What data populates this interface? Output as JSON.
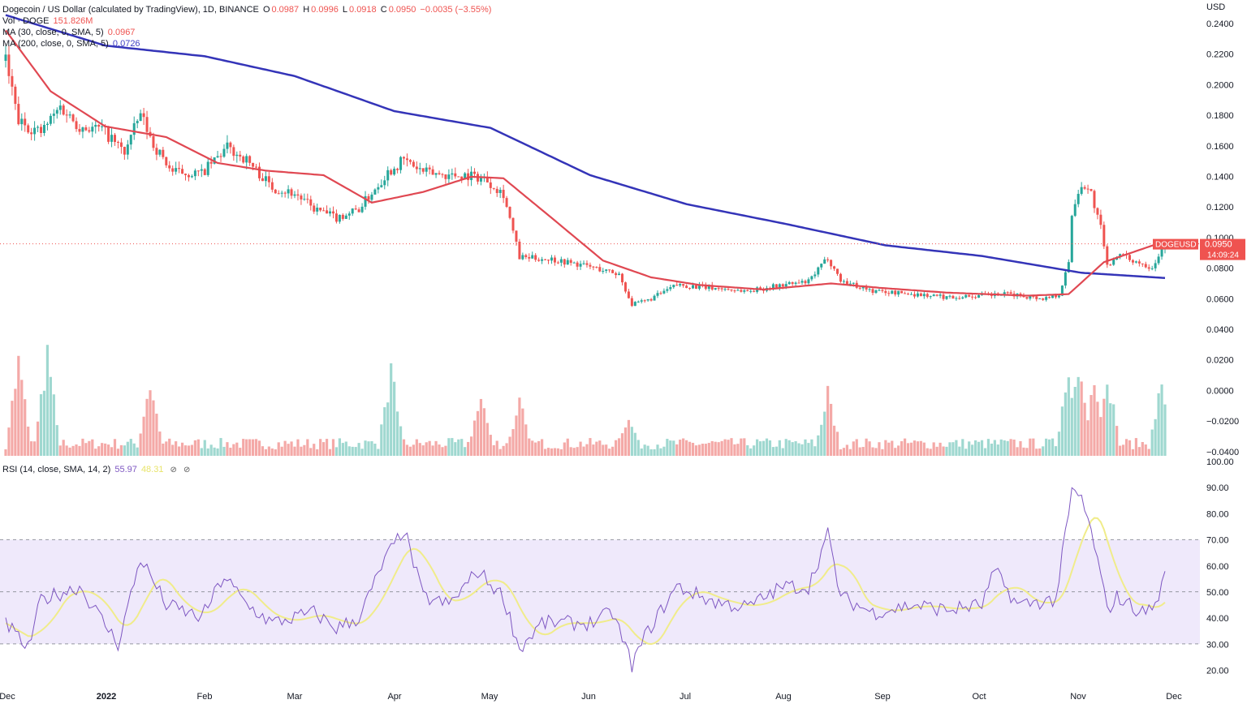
{
  "header": {
    "symbol_title": "Dogecoin / US Dollar (calculated by TradingView), 1D, BINANCE",
    "ohlc": {
      "o_label": "O",
      "o": "0.0987",
      "h_label": "H",
      "h": "0.0996",
      "l_label": "L",
      "l": "0.0918",
      "c_label": "C",
      "c": "0.0950",
      "change": "−0.0035 (−3.55%)"
    }
  },
  "studies": {
    "volume": {
      "label": "Vol · DOGE",
      "value": "151.826M"
    },
    "ma30": {
      "label": "MA (30, close, 0, SMA, 5)",
      "value": "0.0967"
    },
    "ma200": {
      "label": "MA (200, close, 0, SMA, 5)",
      "value": "0.0726"
    },
    "rsi": {
      "label": "RSI (14, close, SMA, 14, 2)",
      "value": "55.97",
      "value2": "48.31"
    }
  },
  "icons": {
    "eye_off": "eye-off-icon",
    "settings": "settings-icon"
  },
  "price_axis": {
    "currency": "USD",
    "ticks": [
      "0.2400",
      "0.2200",
      "0.2000",
      "0.1800",
      "0.1600",
      "0.1400",
      "0.1200",
      "0.1000",
      "0.0800",
      "0.0600",
      "0.0400",
      "0.0200",
      "0.0000",
      "−0.0200",
      "−0.0400"
    ]
  },
  "rsi_axis": {
    "ticks": [
      "100.00",
      "90.00",
      "80.00",
      "70.00",
      "60.00",
      "50.00",
      "40.00",
      "30.00",
      "20.00"
    ]
  },
  "price_tag": {
    "symbol": "DOGEUSD",
    "price": "0.0950",
    "countdown": "14:09:24"
  },
  "time_axis": {
    "labels": [
      "Dec",
      "2022",
      "Feb",
      "Mar",
      "Apr",
      "May",
      "Jun",
      "Jul",
      "Aug",
      "Sep",
      "Oct",
      "Nov",
      "Dec"
    ]
  },
  "colors": {
    "up": "#26a69a",
    "down": "#ef5350",
    "ma30": "#e04852",
    "ma200": "#3434b8",
    "rsi": "#7e57c2",
    "rsi_ma": "#f0ec8a",
    "rsi_band": "#efe9fb"
  },
  "chart_data": {
    "type": "candlestick",
    "interval": "1D",
    "x_range": [
      "2021-12-01",
      "2022-11-27"
    ],
    "y_range_price": [
      0.04,
      0.24
    ],
    "price_anchors": [
      [
        "2021-12-01",
        0.215
      ],
      [
        "2021-12-05",
        0.175
      ],
      [
        "2021-12-12",
        0.168
      ],
      [
        "2021-12-18",
        0.185
      ],
      [
        "2021-12-24",
        0.172
      ],
      [
        "2021-12-31",
        0.17
      ],
      [
        "2022-01-07",
        0.155
      ],
      [
        "2022-01-12",
        0.18
      ],
      [
        "2022-01-16",
        0.16
      ],
      [
        "2022-01-22",
        0.142
      ],
      [
        "2022-01-31",
        0.141
      ],
      [
        "2022-02-08",
        0.158
      ],
      [
        "2022-02-14",
        0.15
      ],
      [
        "2022-02-22",
        0.132
      ],
      [
        "2022-03-01",
        0.128
      ],
      [
        "2022-03-07",
        0.118
      ],
      [
        "2022-03-14",
        0.112
      ],
      [
        "2022-03-21",
        0.118
      ],
      [
        "2022-03-30",
        0.142
      ],
      [
        "2022-04-04",
        0.15
      ],
      [
        "2022-04-10",
        0.142
      ],
      [
        "2022-04-18",
        0.14
      ],
      [
        "2022-04-24",
        0.14
      ],
      [
        "2022-04-29",
        0.138
      ],
      [
        "2022-05-05",
        0.128
      ],
      [
        "2022-05-10",
        0.086
      ],
      [
        "2022-05-20",
        0.085
      ],
      [
        "2022-06-01",
        0.08
      ],
      [
        "2022-06-10",
        0.075
      ],
      [
        "2022-06-14",
        0.055
      ],
      [
        "2022-06-19",
        0.058
      ],
      [
        "2022-06-28",
        0.068
      ],
      [
        "2022-07-10",
        0.066
      ],
      [
        "2022-07-20",
        0.064
      ],
      [
        "2022-07-31",
        0.068
      ],
      [
        "2022-08-08",
        0.07
      ],
      [
        "2022-08-14",
        0.086
      ],
      [
        "2022-08-18",
        0.071
      ],
      [
        "2022-08-28",
        0.064
      ],
      [
        "2022-09-10",
        0.062
      ],
      [
        "2022-09-20",
        0.06
      ],
      [
        "2022-10-01",
        0.061
      ],
      [
        "2022-10-10",
        0.062
      ],
      [
        "2022-10-20",
        0.059
      ],
      [
        "2022-10-25",
        0.062
      ],
      [
        "2022-10-28",
        0.082
      ],
      [
        "2022-10-29",
        0.115
      ],
      [
        "2022-11-01",
        0.135
      ],
      [
        "2022-11-04",
        0.128
      ],
      [
        "2022-11-07",
        0.105
      ],
      [
        "2022-11-09",
        0.08
      ],
      [
        "2022-11-12",
        0.088
      ],
      [
        "2022-11-20",
        0.082
      ],
      [
        "2022-11-23",
        0.08
      ],
      [
        "2022-11-27",
        0.095
      ]
    ],
    "ma30_anchors": [
      [
        "2021-12-01",
        0.235
      ],
      [
        "2021-12-15",
        0.195
      ],
      [
        "2022-01-01",
        0.172
      ],
      [
        "2022-01-20",
        0.165
      ],
      [
        "2022-02-05",
        0.148
      ],
      [
        "2022-02-20",
        0.143
      ],
      [
        "2022-03-10",
        0.14
      ],
      [
        "2022-03-25",
        0.122
      ],
      [
        "2022-04-10",
        0.129
      ],
      [
        "2022-04-25",
        0.139
      ],
      [
        "2022-05-05",
        0.138
      ],
      [
        "2022-05-20",
        0.112
      ],
      [
        "2022-06-05",
        0.084
      ],
      [
        "2022-06-20",
        0.073
      ],
      [
        "2022-07-05",
        0.068
      ],
      [
        "2022-07-25",
        0.065
      ],
      [
        "2022-08-15",
        0.069
      ],
      [
        "2022-08-31",
        0.066
      ],
      [
        "2022-09-20",
        0.063
      ],
      [
        "2022-10-15",
        0.061
      ],
      [
        "2022-10-28",
        0.062
      ],
      [
        "2022-11-08",
        0.083
      ],
      [
        "2022-11-27",
        0.0967
      ]
    ],
    "ma200_anchors": [
      [
        "2021-12-01",
        0.245
      ],
      [
        "2022-01-01",
        0.225
      ],
      [
        "2022-02-01",
        0.218
      ],
      [
        "2022-03-01",
        0.205
      ],
      [
        "2022-04-01",
        0.182
      ],
      [
        "2022-05-01",
        0.171
      ],
      [
        "2022-06-01",
        0.14
      ],
      [
        "2022-07-01",
        0.121
      ],
      [
        "2022-08-01",
        0.108
      ],
      [
        "2022-09-01",
        0.094
      ],
      [
        "2022-10-01",
        0.087
      ],
      [
        "2022-11-01",
        0.076
      ],
      [
        "2022-11-27",
        0.0726
      ]
    ],
    "volume_spikes": [
      [
        "2021-12-05",
        0.95
      ],
      [
        "2021-12-14",
        1.0
      ],
      [
        "2022-01-15",
        0.75
      ],
      [
        "2022-03-31",
        0.85
      ],
      [
        "2022-04-28",
        0.6
      ],
      [
        "2022-05-10",
        0.55
      ],
      [
        "2022-06-13",
        0.42
      ],
      [
        "2022-08-14",
        0.65
      ],
      [
        "2022-10-28",
        0.9
      ],
      [
        "2022-10-31",
        0.85
      ],
      [
        "2022-11-05",
        0.75
      ],
      [
        "2022-11-09",
        0.85
      ],
      [
        "2022-11-26",
        0.75
      ]
    ],
    "rsi_anchors": [
      [
        "2021-12-01",
        38
      ],
      [
        "2021-12-08",
        28
      ],
      [
        "2021-12-12",
        47
      ],
      [
        "2021-12-24",
        52
      ],
      [
        "2022-01-05",
        30
      ],
      [
        "2022-01-12",
        63
      ],
      [
        "2022-01-20",
        45
      ],
      [
        "2022-01-31",
        40
      ],
      [
        "2022-02-07",
        56
      ],
      [
        "2022-02-14",
        45
      ],
      [
        "2022-02-22",
        38
      ],
      [
        "2022-03-07",
        42
      ],
      [
        "2022-03-14",
        36
      ],
      [
        "2022-03-21",
        40
      ],
      [
        "2022-03-29",
        62
      ],
      [
        "2022-04-04",
        74
      ],
      [
        "2022-04-10",
        48
      ],
      [
        "2022-04-18",
        45
      ],
      [
        "2022-04-27",
        58
      ],
      [
        "2022-05-05",
        48
      ],
      [
        "2022-05-10",
        28
      ],
      [
        "2022-05-17",
        38
      ],
      [
        "2022-06-01",
        38
      ],
      [
        "2022-06-08",
        42
      ],
      [
        "2022-06-14",
        22
      ],
      [
        "2022-06-19",
        35
      ],
      [
        "2022-06-28",
        52
      ],
      [
        "2022-07-10",
        46
      ],
      [
        "2022-07-20",
        44
      ],
      [
        "2022-07-31",
        52
      ],
      [
        "2022-08-08",
        52
      ],
      [
        "2022-08-14",
        72
      ],
      [
        "2022-08-18",
        48
      ],
      [
        "2022-08-28",
        42
      ],
      [
        "2022-09-10",
        45
      ],
      [
        "2022-09-20",
        43
      ],
      [
        "2022-10-01",
        45
      ],
      [
        "2022-10-05",
        58
      ],
      [
        "2022-10-12",
        45
      ],
      [
        "2022-10-24",
        47
      ],
      [
        "2022-10-29",
        88
      ],
      [
        "2022-11-01",
        86
      ],
      [
        "2022-11-05",
        68
      ],
      [
        "2022-11-09",
        43
      ],
      [
        "2022-11-12",
        48
      ],
      [
        "2022-11-20",
        42
      ],
      [
        "2022-11-24",
        45
      ],
      [
        "2022-11-27",
        56
      ]
    ],
    "rsi_overbought": 70,
    "rsi_middle": 50,
    "rsi_oversold": 30,
    "last_price": 0.095
  }
}
